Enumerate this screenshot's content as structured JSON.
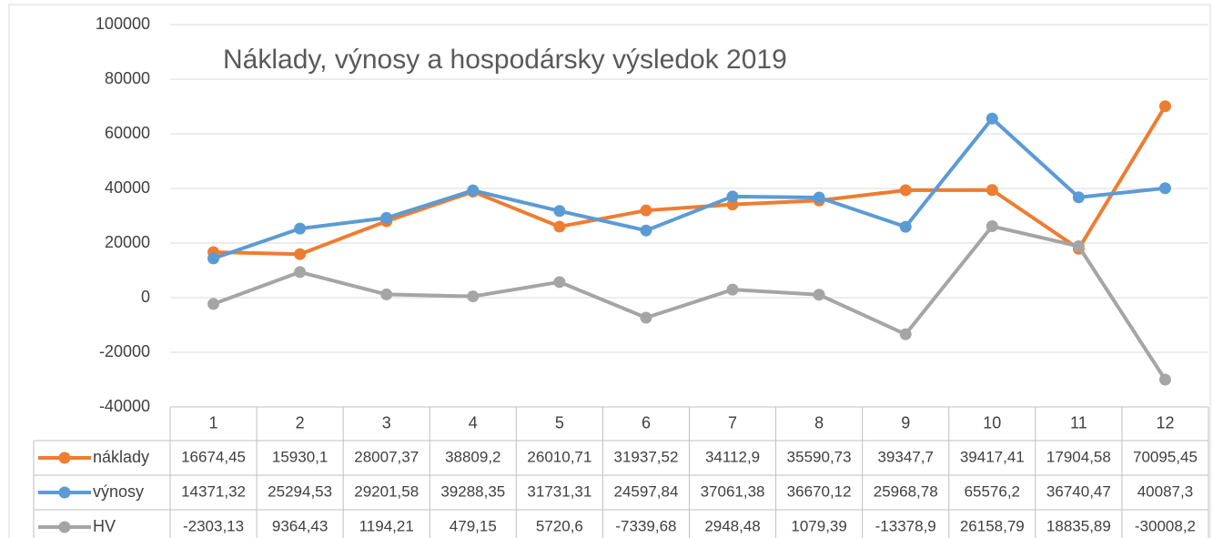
{
  "chart_data": {
    "type": "line",
    "title": "Náklady, výnosy a hospodársky výsledok 2019",
    "categories": [
      "1",
      "2",
      "3",
      "4",
      "5",
      "6",
      "7",
      "8",
      "9",
      "10",
      "11",
      "12"
    ],
    "series": [
      {
        "name": "náklady",
        "color": "#ed7d31",
        "values": [
          16674.45,
          15930.1,
          28007.37,
          38809.2,
          26010.71,
          31937.52,
          34112.9,
          35590.73,
          39347.7,
          39417.41,
          17904.58,
          70095.45
        ],
        "value_labels": [
          "16674,45",
          "15930,1",
          "28007,37",
          "38809,2",
          "26010,71",
          "31937,52",
          "34112,9",
          "35590,73",
          "39347,7",
          "39417,41",
          "17904,58",
          "70095,45"
        ]
      },
      {
        "name": "výnosy",
        "color": "#5b9bd5",
        "values": [
          14371.32,
          25294.53,
          29201.58,
          39288.35,
          31731.31,
          24597.84,
          37061.38,
          36670.12,
          25968.78,
          65576.2,
          36740.47,
          40087.3
        ],
        "value_labels": [
          "14371,32",
          "25294,53",
          "29201,58",
          "39288,35",
          "31731,31",
          "24597,84",
          "37061,38",
          "36670,12",
          "25968,78",
          "65576,2",
          "36740,47",
          "40087,3"
        ]
      },
      {
        "name": "HV",
        "color": "#a5a5a5",
        "values": [
          -2303.13,
          9364.43,
          1194.21,
          479.15,
          5720.6,
          -7339.68,
          2948.48,
          1079.39,
          -13378.9,
          26158.79,
          18835.89,
          -30008.2
        ],
        "value_labels": [
          "-2303,13",
          "9364,43",
          "1194,21",
          "479,15",
          "5720,6",
          "-7339,68",
          "2948,48",
          "1079,39",
          "-13378,9",
          "26158,79",
          "18835,89",
          "-30008,2"
        ]
      }
    ],
    "ylim": [
      -40000,
      100000
    ],
    "yticks": [
      -40000,
      -20000,
      0,
      20000,
      40000,
      60000,
      80000,
      100000
    ],
    "grid": true
  }
}
